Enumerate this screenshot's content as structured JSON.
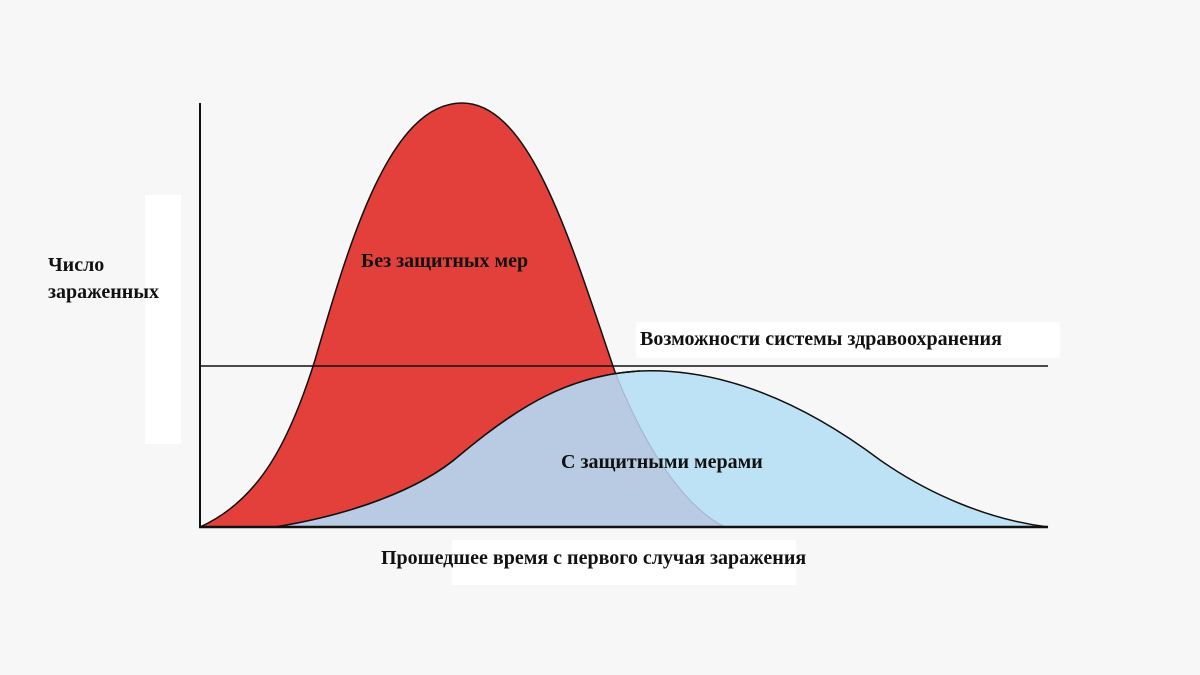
{
  "diagram": {
    "y_axis_label_line1": "Число",
    "y_axis_label_line2": "зараженных",
    "x_axis_label": "Прошедшее время с первого случая заражения",
    "capacity_label": "Возможности системы здравоохранения",
    "curve_without_measures_label": "Без защитных мер",
    "curve_with_measures_label": "С защитными мерами",
    "colors": {
      "without_measures": "#e3403b",
      "with_measures": "#bde2f6",
      "overlap": "#b8cbe3",
      "axes": "#111111"
    }
  }
}
